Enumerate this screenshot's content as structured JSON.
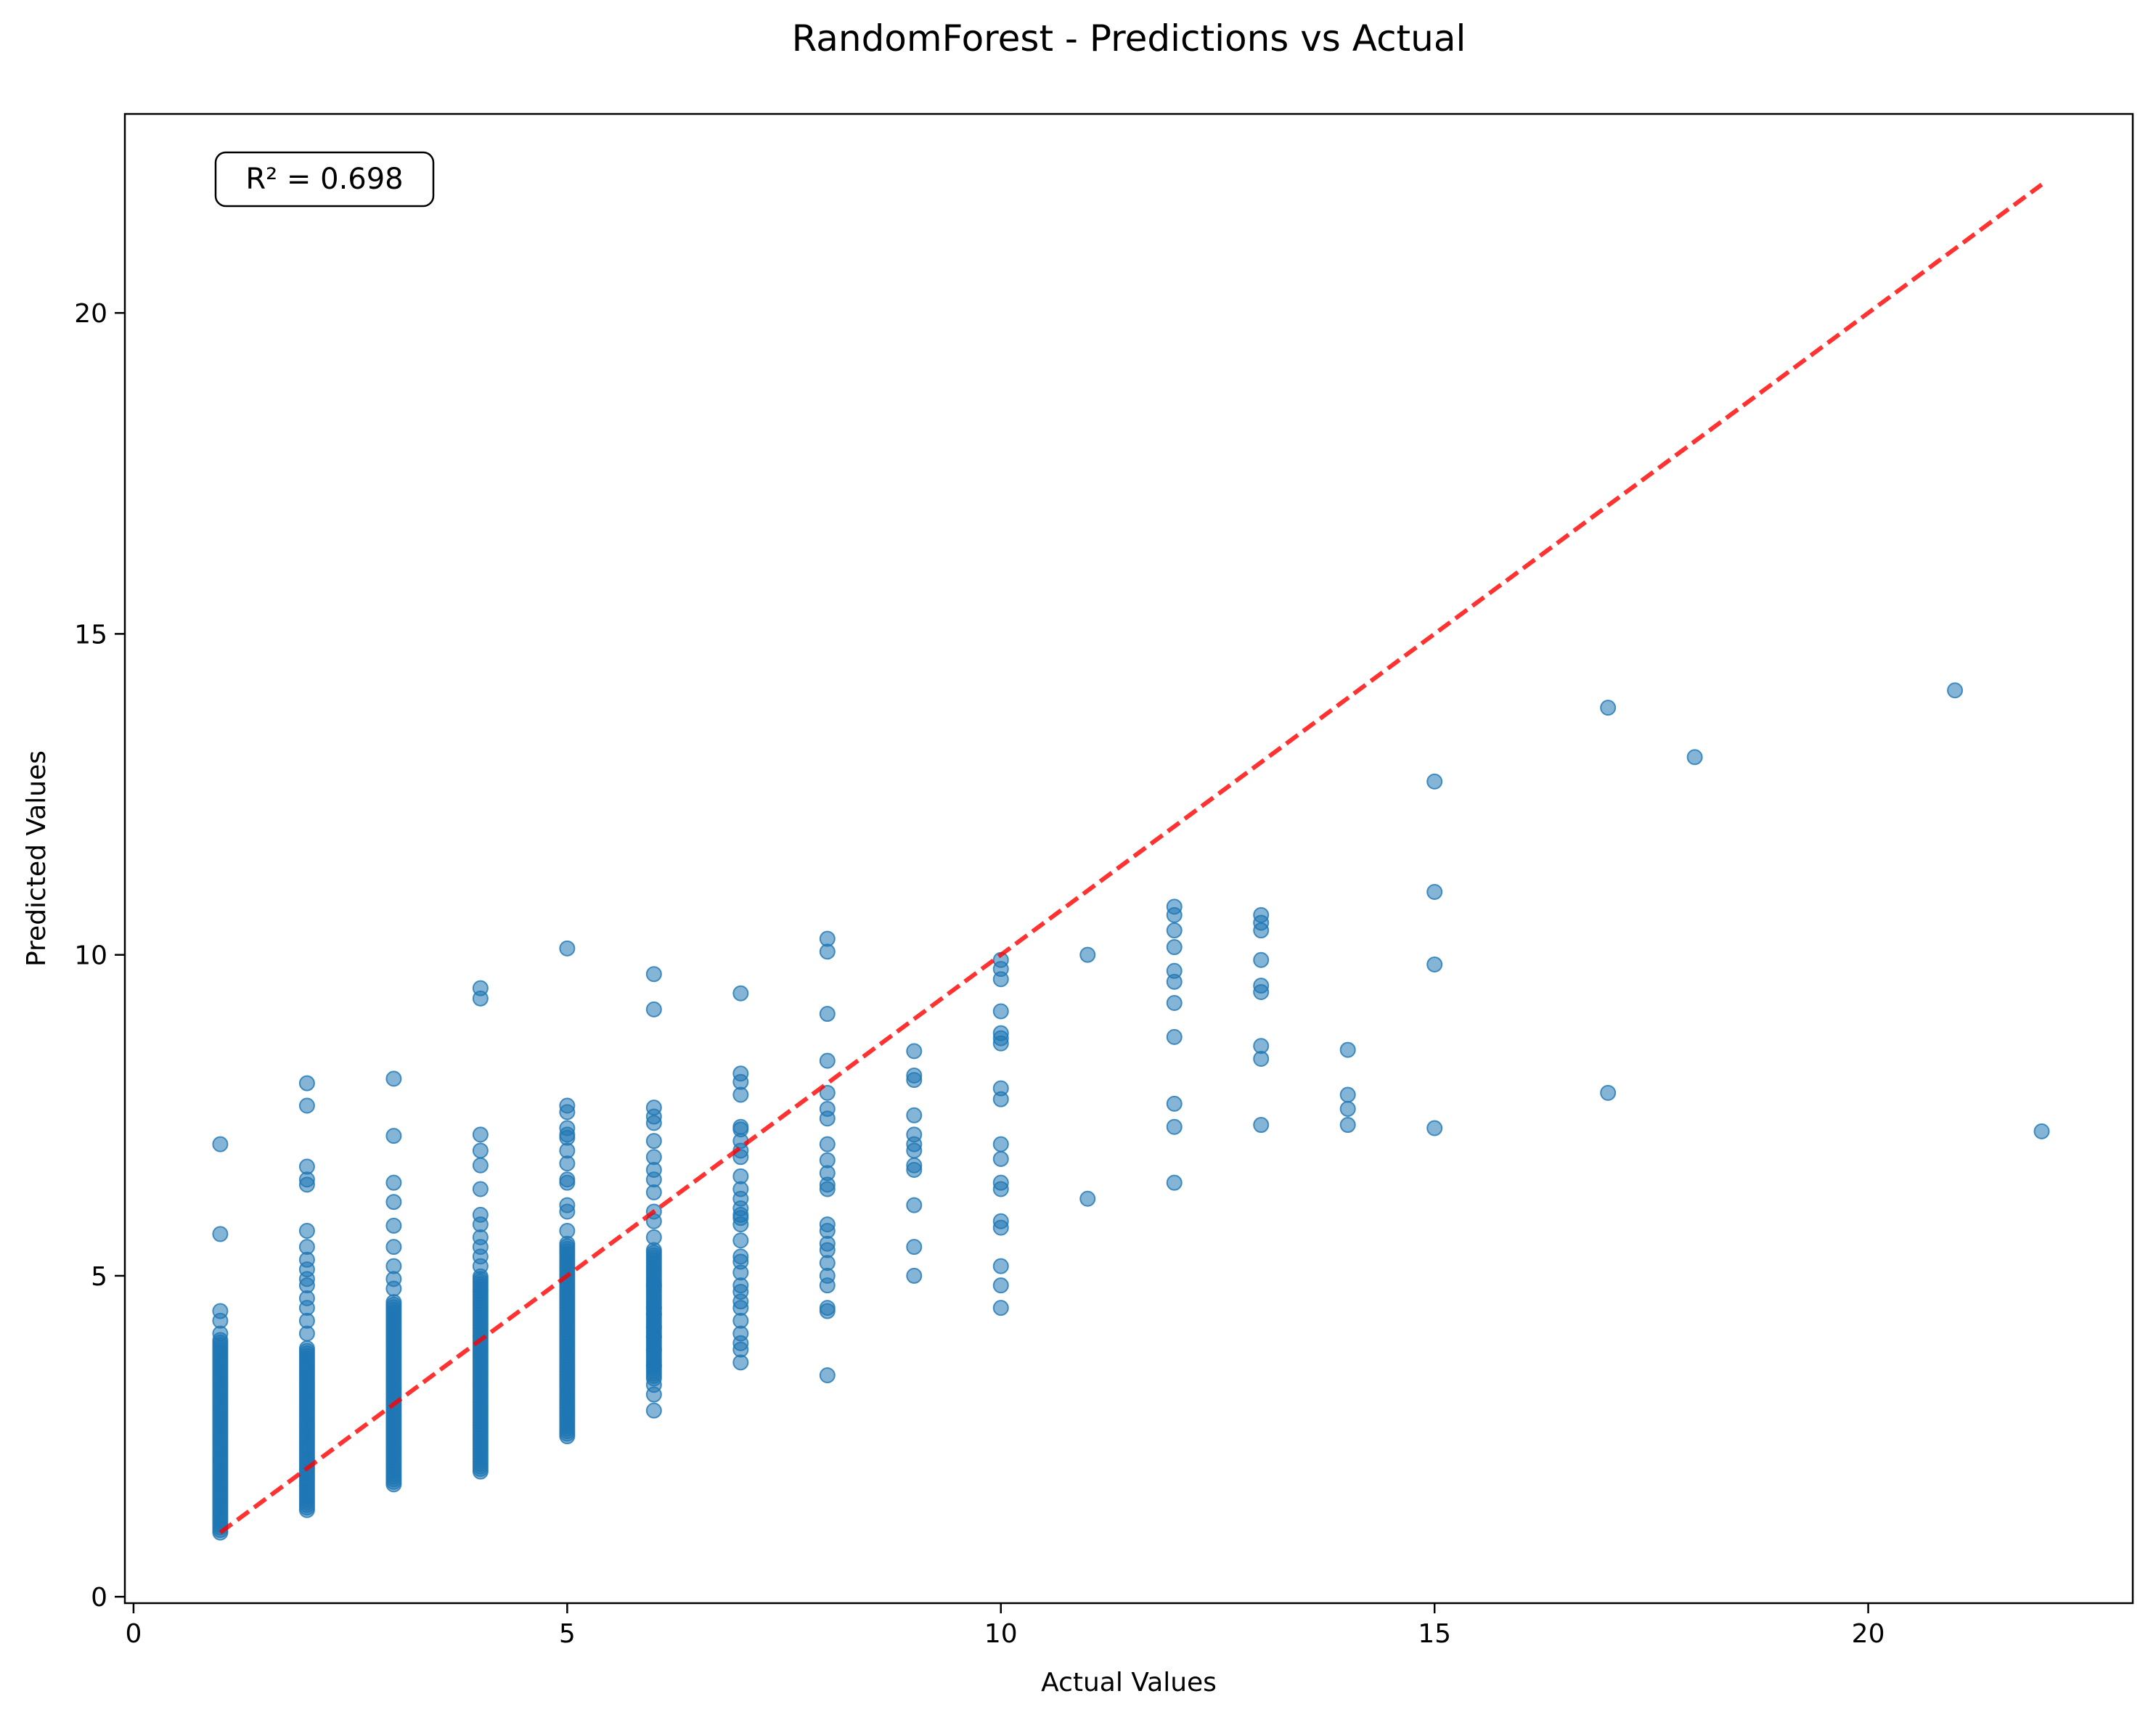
{
  "chart_data": {
    "type": "scatter",
    "title": "RandomForest - Predictions vs Actual",
    "xlabel": "Actual Values",
    "ylabel": "Predicted Values",
    "xlim": [
      -0.1,
      23.05
    ],
    "ylim": [
      -0.1,
      23.1
    ],
    "xticks": [
      0,
      5,
      10,
      15,
      20
    ],
    "yticks": [
      0,
      5,
      10,
      15,
      20
    ],
    "grid": false,
    "legend": "none",
    "annotation": "R² = 0.698",
    "point_color": "#1f77b4",
    "reference_line": {
      "x": [
        1,
        22
      ],
      "y": [
        1,
        22
      ],
      "color": "#ff0000",
      "style": "dashed"
    },
    "clusters": [
      {
        "x": 1,
        "y_min": 1.0,
        "y_max": 4.0
      },
      {
        "x": 2,
        "y_min": 1.35,
        "y_max": 3.9
      },
      {
        "x": 3,
        "y_min": 1.75,
        "y_max": 4.6
      },
      {
        "x": 4,
        "y_min": 1.95,
        "y_max": 5.0
      },
      {
        "x": 5,
        "y_min": 2.5,
        "y_max": 5.5
      },
      {
        "x": 6,
        "y_min": 3.4,
        "y_max": 5.4
      }
    ],
    "points": [
      [
        1,
        7.05
      ],
      [
        1,
        5.65
      ],
      [
        1,
        4.45
      ],
      [
        1,
        4.3
      ],
      [
        1,
        4.1
      ],
      [
        2,
        8.0
      ],
      [
        2,
        7.65
      ],
      [
        2,
        6.7
      ],
      [
        2,
        6.5
      ],
      [
        2,
        6.42
      ],
      [
        2,
        5.7
      ],
      [
        2,
        5.45
      ],
      [
        2,
        5.25
      ],
      [
        2,
        5.1
      ],
      [
        2,
        4.95
      ],
      [
        2,
        4.85
      ],
      [
        2,
        4.65
      ],
      [
        2,
        4.5
      ],
      [
        2,
        4.3
      ],
      [
        2,
        4.1
      ],
      [
        3,
        8.07
      ],
      [
        3,
        7.18
      ],
      [
        3,
        6.45
      ],
      [
        3,
        6.15
      ],
      [
        3,
        5.78
      ],
      [
        3,
        5.45
      ],
      [
        3,
        5.15
      ],
      [
        3,
        4.95
      ],
      [
        3,
        4.8
      ],
      [
        4,
        9.48
      ],
      [
        4,
        9.32
      ],
      [
        4,
        7.2
      ],
      [
        4,
        6.95
      ],
      [
        4,
        6.72
      ],
      [
        4,
        6.35
      ],
      [
        4,
        5.95
      ],
      [
        4,
        5.8
      ],
      [
        4,
        5.6
      ],
      [
        4,
        5.45
      ],
      [
        4,
        5.3
      ],
      [
        4,
        5.15
      ],
      [
        5,
        10.1
      ],
      [
        5,
        7.65
      ],
      [
        5,
        7.55
      ],
      [
        5,
        7.3
      ],
      [
        5,
        7.2
      ],
      [
        5,
        7.15
      ],
      [
        5,
        6.95
      ],
      [
        5,
        6.75
      ],
      [
        5,
        6.5
      ],
      [
        5,
        6.45
      ],
      [
        5,
        6.1
      ],
      [
        5,
        6.0
      ],
      [
        5,
        5.7
      ],
      [
        6,
        9.7
      ],
      [
        6,
        9.15
      ],
      [
        6,
        7.62
      ],
      [
        6,
        7.48
      ],
      [
        6,
        7.38
      ],
      [
        6,
        7.1
      ],
      [
        6,
        6.85
      ],
      [
        6,
        6.65
      ],
      [
        6,
        6.5
      ],
      [
        6,
        6.3
      ],
      [
        6,
        6.0
      ],
      [
        6,
        5.85
      ],
      [
        6,
        5.6
      ],
      [
        6,
        4.85
      ],
      [
        6,
        4.5
      ],
      [
        6,
        4.4
      ],
      [
        6,
        4.2
      ],
      [
        6,
        4.05
      ],
      [
        6,
        3.85
      ],
      [
        6,
        3.6
      ],
      [
        6,
        3.3
      ],
      [
        6,
        3.15
      ],
      [
        6,
        2.9
      ],
      [
        7,
        9.4
      ],
      [
        7,
        8.15
      ],
      [
        7,
        8.02
      ],
      [
        7,
        7.82
      ],
      [
        7,
        7.32
      ],
      [
        7,
        7.28
      ],
      [
        7,
        7.1
      ],
      [
        7,
        6.95
      ],
      [
        7,
        6.85
      ],
      [
        7,
        6.55
      ],
      [
        7,
        6.35
      ],
      [
        7,
        6.2
      ],
      [
        7,
        6.05
      ],
      [
        7,
        5.95
      ],
      [
        7,
        5.9
      ],
      [
        7,
        5.8
      ],
      [
        7,
        5.55
      ],
      [
        7,
        5.3
      ],
      [
        7,
        5.22
      ],
      [
        7,
        5.05
      ],
      [
        7,
        4.85
      ],
      [
        7,
        4.75
      ],
      [
        7,
        4.6
      ],
      [
        7,
        4.5
      ],
      [
        7,
        4.3
      ],
      [
        7,
        4.1
      ],
      [
        7,
        3.95
      ],
      [
        7,
        3.85
      ],
      [
        7,
        3.65
      ],
      [
        8,
        10.25
      ],
      [
        8,
        10.05
      ],
      [
        8,
        9.08
      ],
      [
        8,
        8.35
      ],
      [
        8,
        7.85
      ],
      [
        8,
        7.6
      ],
      [
        8,
        7.45
      ],
      [
        8,
        7.05
      ],
      [
        8,
        6.8
      ],
      [
        8,
        6.6
      ],
      [
        8,
        6.42
      ],
      [
        8,
        6.35
      ],
      [
        8,
        5.8
      ],
      [
        8,
        5.7
      ],
      [
        8,
        5.5
      ],
      [
        8,
        5.4
      ],
      [
        8,
        5.2
      ],
      [
        8,
        5.0
      ],
      [
        8,
        4.85
      ],
      [
        8,
        4.5
      ],
      [
        8,
        4.45
      ],
      [
        8,
        3.45
      ],
      [
        9,
        8.5
      ],
      [
        9,
        8.12
      ],
      [
        9,
        8.05
      ],
      [
        9,
        7.5
      ],
      [
        9,
        7.2
      ],
      [
        9,
        7.05
      ],
      [
        9,
        6.95
      ],
      [
        9,
        6.72
      ],
      [
        9,
        6.65
      ],
      [
        9,
        6.1
      ],
      [
        9,
        5.45
      ],
      [
        9,
        5.0
      ],
      [
        10,
        9.92
      ],
      [
        10,
        9.78
      ],
      [
        10,
        9.62
      ],
      [
        10,
        9.12
      ],
      [
        10,
        8.78
      ],
      [
        10,
        8.7
      ],
      [
        10,
        8.62
      ],
      [
        10,
        7.92
      ],
      [
        10,
        7.75
      ],
      [
        10,
        7.05
      ],
      [
        10,
        6.82
      ],
      [
        10,
        6.45
      ],
      [
        10,
        6.35
      ],
      [
        10,
        5.85
      ],
      [
        10,
        5.75
      ],
      [
        10,
        5.15
      ],
      [
        10,
        4.85
      ],
      [
        10,
        4.5
      ],
      [
        11,
        10.0
      ],
      [
        11,
        6.2
      ],
      [
        12,
        10.75
      ],
      [
        12,
        10.62
      ],
      [
        12,
        10.38
      ],
      [
        12,
        10.12
      ],
      [
        12,
        9.75
      ],
      [
        12,
        9.58
      ],
      [
        12,
        9.25
      ],
      [
        12,
        8.72
      ],
      [
        12,
        7.68
      ],
      [
        12,
        7.32
      ],
      [
        12,
        6.45
      ],
      [
        13,
        10.62
      ],
      [
        13,
        10.5
      ],
      [
        13,
        10.38
      ],
      [
        13,
        9.92
      ],
      [
        13,
        9.52
      ],
      [
        13,
        9.42
      ],
      [
        13,
        8.58
      ],
      [
        13,
        8.38
      ],
      [
        13,
        7.35
      ],
      [
        14,
        8.52
      ],
      [
        14,
        7.82
      ],
      [
        14,
        7.6
      ],
      [
        14,
        7.35
      ],
      [
        15,
        12.7
      ],
      [
        15,
        10.98
      ],
      [
        15,
        9.85
      ],
      [
        15,
        7.3
      ],
      [
        17,
        13.85
      ],
      [
        17,
        7.85
      ],
      [
        18,
        13.08
      ],
      [
        21,
        14.12
      ],
      [
        22,
        7.25
      ]
    ]
  }
}
